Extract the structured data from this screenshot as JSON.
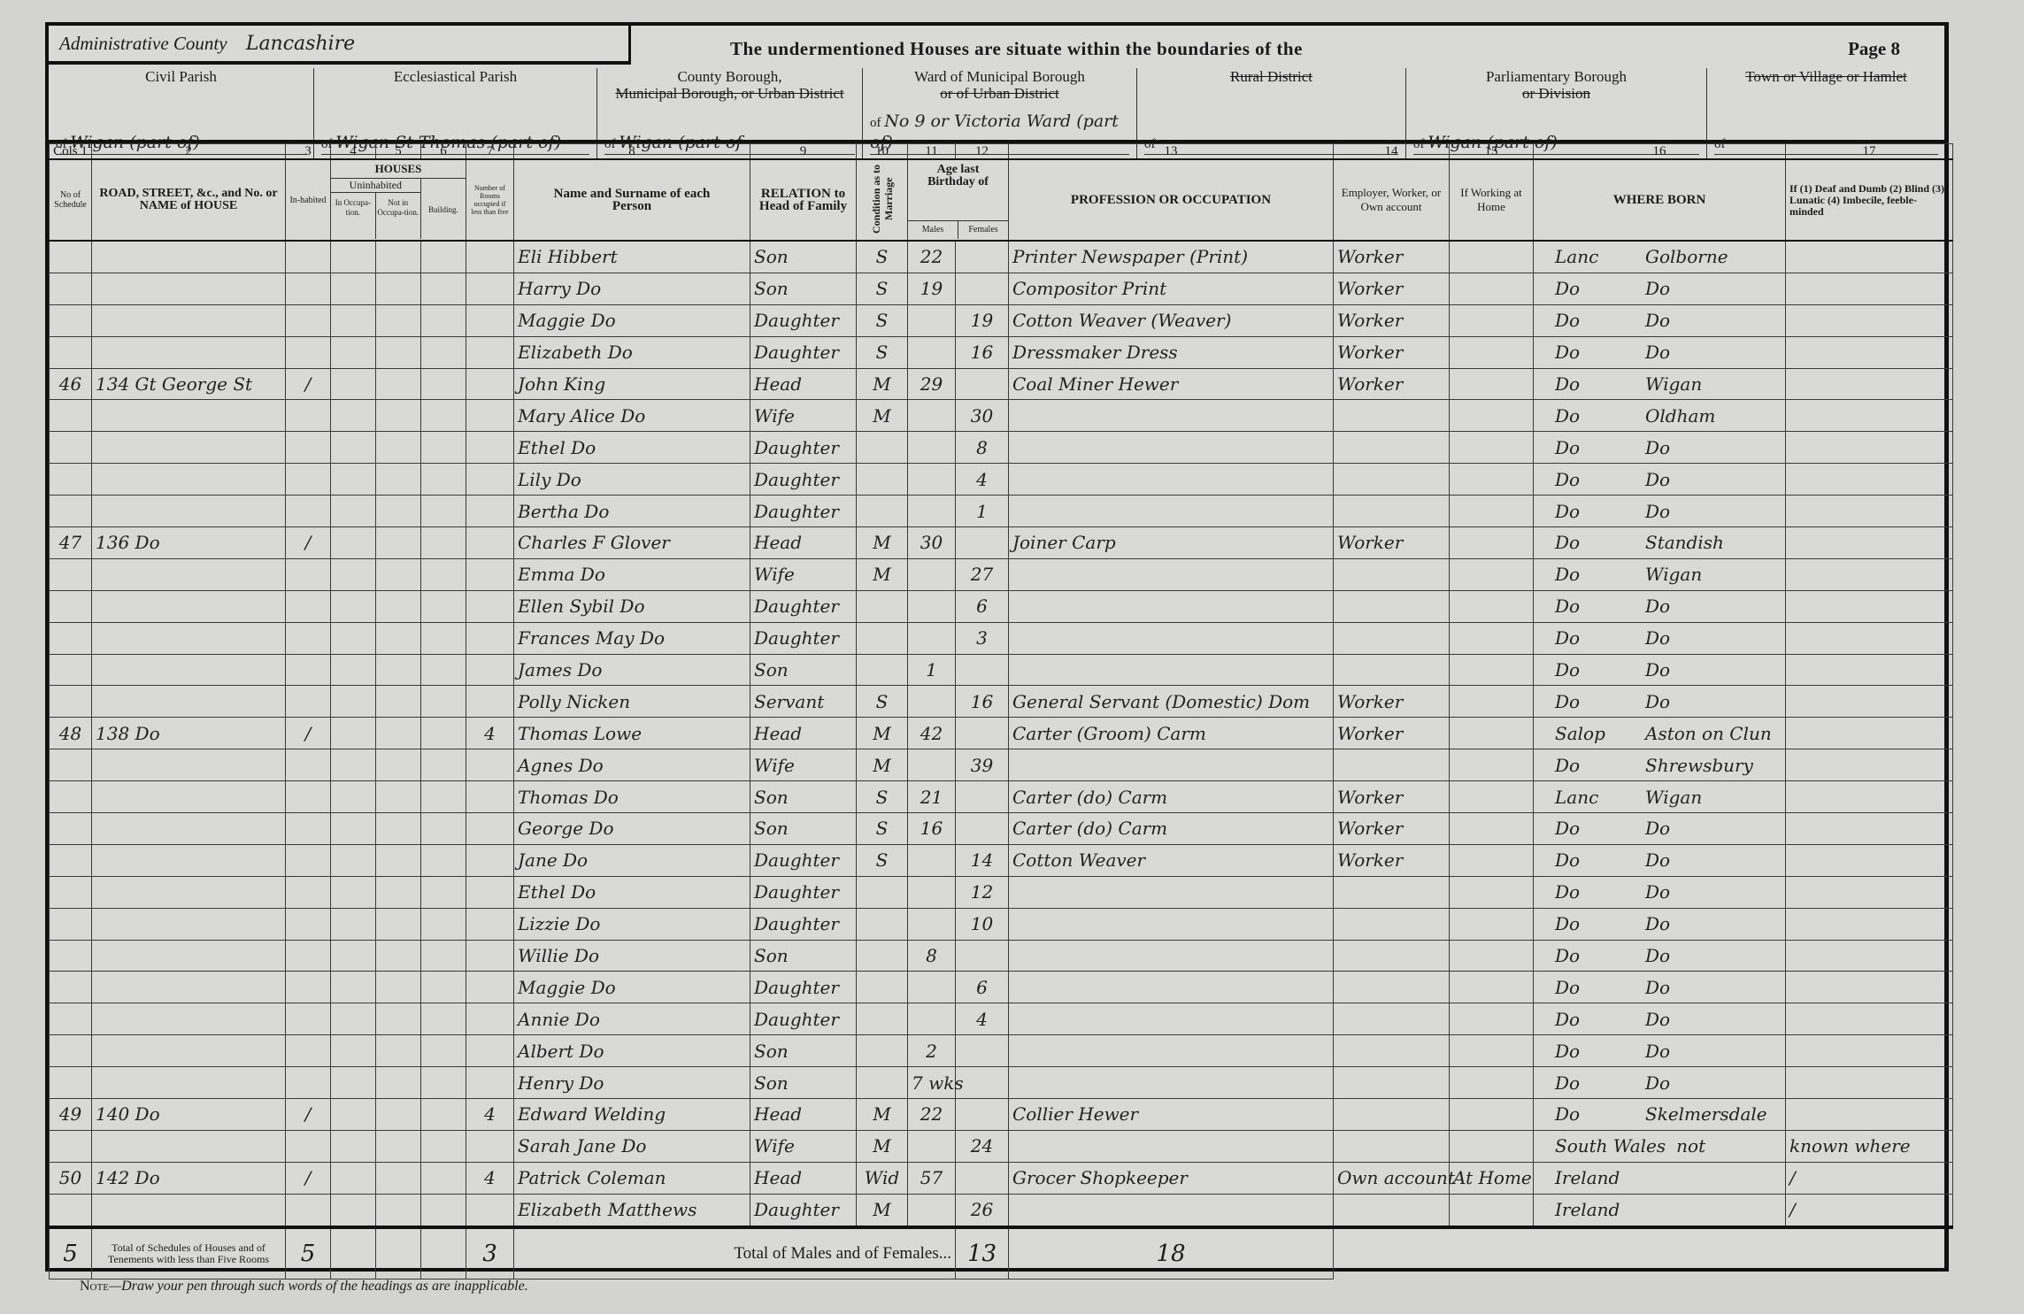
{
  "header": {
    "county_label": "Administrative County",
    "county_value": "Lancashire",
    "title": "The undermentioned Houses are situate within the boundaries of the",
    "page": "Page 8",
    "sections": [
      {
        "label": "Civil Parish",
        "struck": "",
        "value": "Wigan (part of)"
      },
      {
        "label": "Ecclesiastical Parish",
        "struck": "",
        "value": "Wigan St Thomas (part of)"
      },
      {
        "label": "County Borough,",
        "struck": "Municipal Borough, or Urban District",
        "value": "Wigan (part of"
      },
      {
        "label": "Ward of Municipal Borough",
        "struck": "or of Urban District",
        "value": "No 9 or Victoria Ward (part of)"
      },
      {
        "label": "",
        "struck": "Rural District",
        "value": ""
      },
      {
        "label": "Parliamentary Borough",
        "struck": "or Division",
        "value": "Wigan (part of)"
      },
      {
        "label": "",
        "struck": "Town or Village or Hamlet",
        "value": ""
      }
    ],
    "of": "of"
  },
  "columns": {
    "numbers": [
      "Cols 1",
      "2",
      "3",
      "4",
      "5",
      "6",
      "7",
      "8",
      "9",
      "10",
      "11",
      "12",
      "13",
      "14",
      "15",
      "16",
      "17"
    ],
    "schedule": "No of Schedule",
    "road": "ROAD, STREET, &c., and No. or NAME of HOUSE",
    "houses": "HOUSES",
    "inhabited": "In-habited",
    "uninhabited": "Uninhabited",
    "in_occupation": "In Occupa-tion.",
    "not_in_occupation": "Not in Occupa-tion.",
    "building": "Building.",
    "rooms": "Number of Rooms occupied if less than five",
    "name": "Name and Surname of each Person",
    "relation": "RELATION to Head of Family",
    "condition": "Condition as to Marriage",
    "age": "Age last Birthday of",
    "males": "Males",
    "females": "Females",
    "occupation": "PROFESSION OR OCCUPATION",
    "employer": "Employer, Worker, or Own account",
    "at_home": "If Working at Home",
    "where_born": "WHERE BORN",
    "infirmity": "If (1) Deaf and Dumb (2) Blind (3) Lunatic (4) Imbecile, feeble-minded"
  },
  "rows": [
    {
      "schedule": "",
      "address": "",
      "inhabited": "",
      "rooms": "",
      "name": "Eli Hibbert",
      "relation": "Son",
      "condition": "S",
      "age_m": "22",
      "age_f": "",
      "occupation": "Printer Newspaper (Print)",
      "employer": "Worker",
      "at_home": "",
      "born_county": "Lanc",
      "born_place": "Golborne",
      "infirmity": ""
    },
    {
      "schedule": "",
      "address": "",
      "inhabited": "",
      "rooms": "",
      "name": "Harry Do",
      "relation": "Son",
      "condition": "S",
      "age_m": "19",
      "age_f": "",
      "occupation": "Compositor Print",
      "employer": "Worker",
      "at_home": "",
      "born_county": "Do",
      "born_place": "Do",
      "infirmity": ""
    },
    {
      "schedule": "",
      "address": "",
      "inhabited": "",
      "rooms": "",
      "name": "Maggie Do",
      "relation": "Daughter",
      "condition": "S",
      "age_m": "",
      "age_f": "19",
      "occupation": "Cotton Weaver (Weaver)",
      "employer": "Worker",
      "at_home": "",
      "born_county": "Do",
      "born_place": "Do",
      "infirmity": ""
    },
    {
      "schedule": "",
      "address": "",
      "inhabited": "",
      "rooms": "",
      "name": "Elizabeth Do",
      "relation": "Daughter",
      "condition": "S",
      "age_m": "",
      "age_f": "16",
      "occupation": "Dressmaker Dress",
      "employer": "Worker",
      "at_home": "",
      "born_county": "Do",
      "born_place": "Do",
      "infirmity": ""
    },
    {
      "schedule": "46",
      "address": "134 Gt George St",
      "inhabited": "/",
      "rooms": "",
      "name": "John King",
      "relation": "Head",
      "condition": "M",
      "age_m": "29",
      "age_f": "",
      "occupation": "Coal Miner Hewer",
      "employer": "Worker",
      "at_home": "",
      "born_county": "Do",
      "born_place": "Wigan",
      "infirmity": ""
    },
    {
      "schedule": "",
      "address": "",
      "inhabited": "",
      "rooms": "",
      "name": "Mary Alice Do",
      "relation": "Wife",
      "condition": "M",
      "age_m": "",
      "age_f": "30",
      "occupation": "",
      "employer": "",
      "at_home": "",
      "born_county": "Do",
      "born_place": "Oldham",
      "infirmity": ""
    },
    {
      "schedule": "",
      "address": "",
      "inhabited": "",
      "rooms": "",
      "name": "Ethel Do",
      "relation": "Daughter",
      "condition": "",
      "age_m": "",
      "age_f": "8",
      "occupation": "",
      "employer": "",
      "at_home": "",
      "born_county": "Do",
      "born_place": "Do",
      "infirmity": ""
    },
    {
      "schedule": "",
      "address": "",
      "inhabited": "",
      "rooms": "",
      "name": "Lily Do",
      "relation": "Daughter",
      "condition": "",
      "age_m": "",
      "age_f": "4",
      "occupation": "",
      "employer": "",
      "at_home": "",
      "born_county": "Do",
      "born_place": "Do",
      "infirmity": ""
    },
    {
      "schedule": "",
      "address": "",
      "inhabited": "",
      "rooms": "",
      "name": "Bertha Do",
      "relation": "Daughter",
      "condition": "",
      "age_m": "",
      "age_f": "1",
      "occupation": "",
      "employer": "",
      "at_home": "",
      "born_county": "Do",
      "born_place": "Do",
      "infirmity": ""
    },
    {
      "schedule": "47",
      "address": "136 Do",
      "inhabited": "/",
      "rooms": "",
      "name": "Charles F Glover",
      "relation": "Head",
      "condition": "M",
      "age_m": "30",
      "age_f": "",
      "occupation": "Joiner Carp",
      "employer": "Worker",
      "at_home": "",
      "born_county": "Do",
      "born_place": "Standish",
      "infirmity": ""
    },
    {
      "schedule": "",
      "address": "",
      "inhabited": "",
      "rooms": "",
      "name": "Emma Do",
      "relation": "Wife",
      "condition": "M",
      "age_m": "",
      "age_f": "27",
      "occupation": "",
      "employer": "",
      "at_home": "",
      "born_county": "Do",
      "born_place": "Wigan",
      "infirmity": ""
    },
    {
      "schedule": "",
      "address": "",
      "inhabited": "",
      "rooms": "",
      "name": "Ellen Sybil Do",
      "relation": "Daughter",
      "condition": "",
      "age_m": "",
      "age_f": "6",
      "occupation": "",
      "employer": "",
      "at_home": "",
      "born_county": "Do",
      "born_place": "Do",
      "infirmity": ""
    },
    {
      "schedule": "",
      "address": "",
      "inhabited": "",
      "rooms": "",
      "name": "Frances May Do",
      "relation": "Daughter",
      "condition": "",
      "age_m": "",
      "age_f": "3",
      "occupation": "",
      "employer": "",
      "at_home": "",
      "born_county": "Do",
      "born_place": "Do",
      "infirmity": ""
    },
    {
      "schedule": "",
      "address": "",
      "inhabited": "",
      "rooms": "",
      "name": "James Do",
      "relation": "Son",
      "condition": "",
      "age_m": "1",
      "age_f": "",
      "occupation": "",
      "employer": "",
      "at_home": "",
      "born_county": "Do",
      "born_place": "Do",
      "infirmity": ""
    },
    {
      "schedule": "",
      "address": "",
      "inhabited": "",
      "rooms": "",
      "name": "Polly Nicken",
      "relation": "Servant",
      "condition": "S",
      "age_m": "",
      "age_f": "16",
      "occupation": "General Servant (Domestic) Dom",
      "employer": "Worker",
      "at_home": "",
      "born_county": "Do",
      "born_place": "Do",
      "infirmity": ""
    },
    {
      "schedule": "48",
      "address": "138 Do",
      "inhabited": "/",
      "rooms": "4",
      "name": "Thomas Lowe",
      "relation": "Head",
      "condition": "M",
      "age_m": "42",
      "age_f": "",
      "occupation": "Carter (Groom) Carm",
      "employer": "Worker",
      "at_home": "",
      "born_county": "Salop",
      "born_place": "Aston on Clun",
      "infirmity": ""
    },
    {
      "schedule": "",
      "address": "",
      "inhabited": "",
      "rooms": "",
      "name": "Agnes Do",
      "relation": "Wife",
      "condition": "M",
      "age_m": "",
      "age_f": "39",
      "occupation": "",
      "employer": "",
      "at_home": "",
      "born_county": "Do",
      "born_place": "Shrewsbury",
      "infirmity": ""
    },
    {
      "schedule": "",
      "address": "",
      "inhabited": "",
      "rooms": "",
      "name": "Thomas Do",
      "relation": "Son",
      "condition": "S",
      "age_m": "21",
      "age_f": "",
      "occupation": "Carter (do) Carm",
      "employer": "Worker",
      "at_home": "",
      "born_county": "Lanc",
      "born_place": "Wigan",
      "infirmity": ""
    },
    {
      "schedule": "",
      "address": "",
      "inhabited": "",
      "rooms": "",
      "name": "George Do",
      "relation": "Son",
      "condition": "S",
      "age_m": "16",
      "age_f": "",
      "occupation": "Carter (do) Carm",
      "employer": "Worker",
      "at_home": "",
      "born_county": "Do",
      "born_place": "Do",
      "infirmity": ""
    },
    {
      "schedule": "",
      "address": "",
      "inhabited": "",
      "rooms": "",
      "name": "Jane Do",
      "relation": "Daughter",
      "condition": "S",
      "age_m": "",
      "age_f": "14",
      "occupation": "Cotton Weaver",
      "employer": "Worker",
      "at_home": "",
      "born_county": "Do",
      "born_place": "Do",
      "infirmity": ""
    },
    {
      "schedule": "",
      "address": "",
      "inhabited": "",
      "rooms": "",
      "name": "Ethel Do",
      "relation": "Daughter",
      "condition": "",
      "age_m": "",
      "age_f": "12",
      "occupation": "",
      "employer": "",
      "at_home": "",
      "born_county": "Do",
      "born_place": "Do",
      "infirmity": ""
    },
    {
      "schedule": "",
      "address": "",
      "inhabited": "",
      "rooms": "",
      "name": "Lizzie Do",
      "relation": "Daughter",
      "condition": "",
      "age_m": "",
      "age_f": "10",
      "occupation": "",
      "employer": "",
      "at_home": "",
      "born_county": "Do",
      "born_place": "Do",
      "infirmity": ""
    },
    {
      "schedule": "",
      "address": "",
      "inhabited": "",
      "rooms": "",
      "name": "Willie Do",
      "relation": "Son",
      "condition": "",
      "age_m": "8",
      "age_f": "",
      "occupation": "",
      "employer": "",
      "at_home": "",
      "born_county": "Do",
      "born_place": "Do",
      "infirmity": ""
    },
    {
      "schedule": "",
      "address": "",
      "inhabited": "",
      "rooms": "",
      "name": "Maggie Do",
      "relation": "Daughter",
      "condition": "",
      "age_m": "",
      "age_f": "6",
      "occupation": "",
      "employer": "",
      "at_home": "",
      "born_county": "Do",
      "born_place": "Do",
      "infirmity": ""
    },
    {
      "schedule": "",
      "address": "",
      "inhabited": "",
      "rooms": "",
      "name": "Annie Do",
      "relation": "Daughter",
      "condition": "",
      "age_m": "",
      "age_f": "4",
      "occupation": "",
      "employer": "",
      "at_home": "",
      "born_county": "Do",
      "born_place": "Do",
      "infirmity": ""
    },
    {
      "schedule": "",
      "address": "",
      "inhabited": "",
      "rooms": "",
      "name": "Albert Do",
      "relation": "Son",
      "condition": "",
      "age_m": "2",
      "age_f": "",
      "occupation": "",
      "employer": "",
      "at_home": "",
      "born_county": "Do",
      "born_place": "Do",
      "infirmity": ""
    },
    {
      "schedule": "",
      "address": "",
      "inhabited": "",
      "rooms": "",
      "name": "Henry Do",
      "relation": "Son",
      "condition": "",
      "age_m": "7 wks",
      "age_f": "",
      "occupation": "",
      "employer": "",
      "at_home": "",
      "born_county": "Do",
      "born_place": "Do",
      "infirmity": ""
    },
    {
      "schedule": "49",
      "address": "140 Do",
      "inhabited": "/",
      "rooms": "4",
      "name": "Edward Welding",
      "relation": "Head",
      "condition": "M",
      "age_m": "22",
      "age_f": "",
      "occupation": "Collier Hewer",
      "employer": "",
      "at_home": "",
      "born_county": "Do",
      "born_place": "Skelmersdale",
      "infirmity": ""
    },
    {
      "schedule": "",
      "address": "",
      "inhabited": "",
      "rooms": "",
      "name": "Sarah Jane Do",
      "relation": "Wife",
      "condition": "M",
      "age_m": "",
      "age_f": "24",
      "occupation": "",
      "employer": "",
      "at_home": "",
      "born_county": "South Wales",
      "born_place": "not",
      "infirmity": "known where"
    },
    {
      "schedule": "50",
      "address": "142 Do",
      "inhabited": "/",
      "rooms": "4",
      "name": "Patrick Coleman",
      "relation": "Head",
      "condition": "Wid",
      "age_m": "57",
      "age_f": "",
      "occupation": "Grocer Shopkeeper",
      "employer": "Own account",
      "at_home": "At Home",
      "born_county": "Ireland",
      "born_place": "",
      "infirmity": "/"
    },
    {
      "schedule": "",
      "address": "",
      "inhabited": "",
      "rooms": "",
      "name": "Elizabeth Matthews",
      "relation": "Daughter",
      "condition": "M",
      "age_m": "",
      "age_f": "26",
      "occupation": "",
      "employer": "",
      "at_home": "",
      "born_county": "Ireland",
      "born_place": "",
      "infirmity": "/"
    }
  ],
  "totals": {
    "schedules": "5",
    "schedules_label": "Total of Schedules of Houses and of Tenements with less than Five Rooms",
    "inhabited": "5",
    "rooms": "3",
    "label": "Total of Males and of Females...",
    "males": "13",
    "females": "18"
  },
  "note": {
    "prefix": "Note",
    "text": "—Draw your pen through such words of the headings as are inapplicable."
  }
}
